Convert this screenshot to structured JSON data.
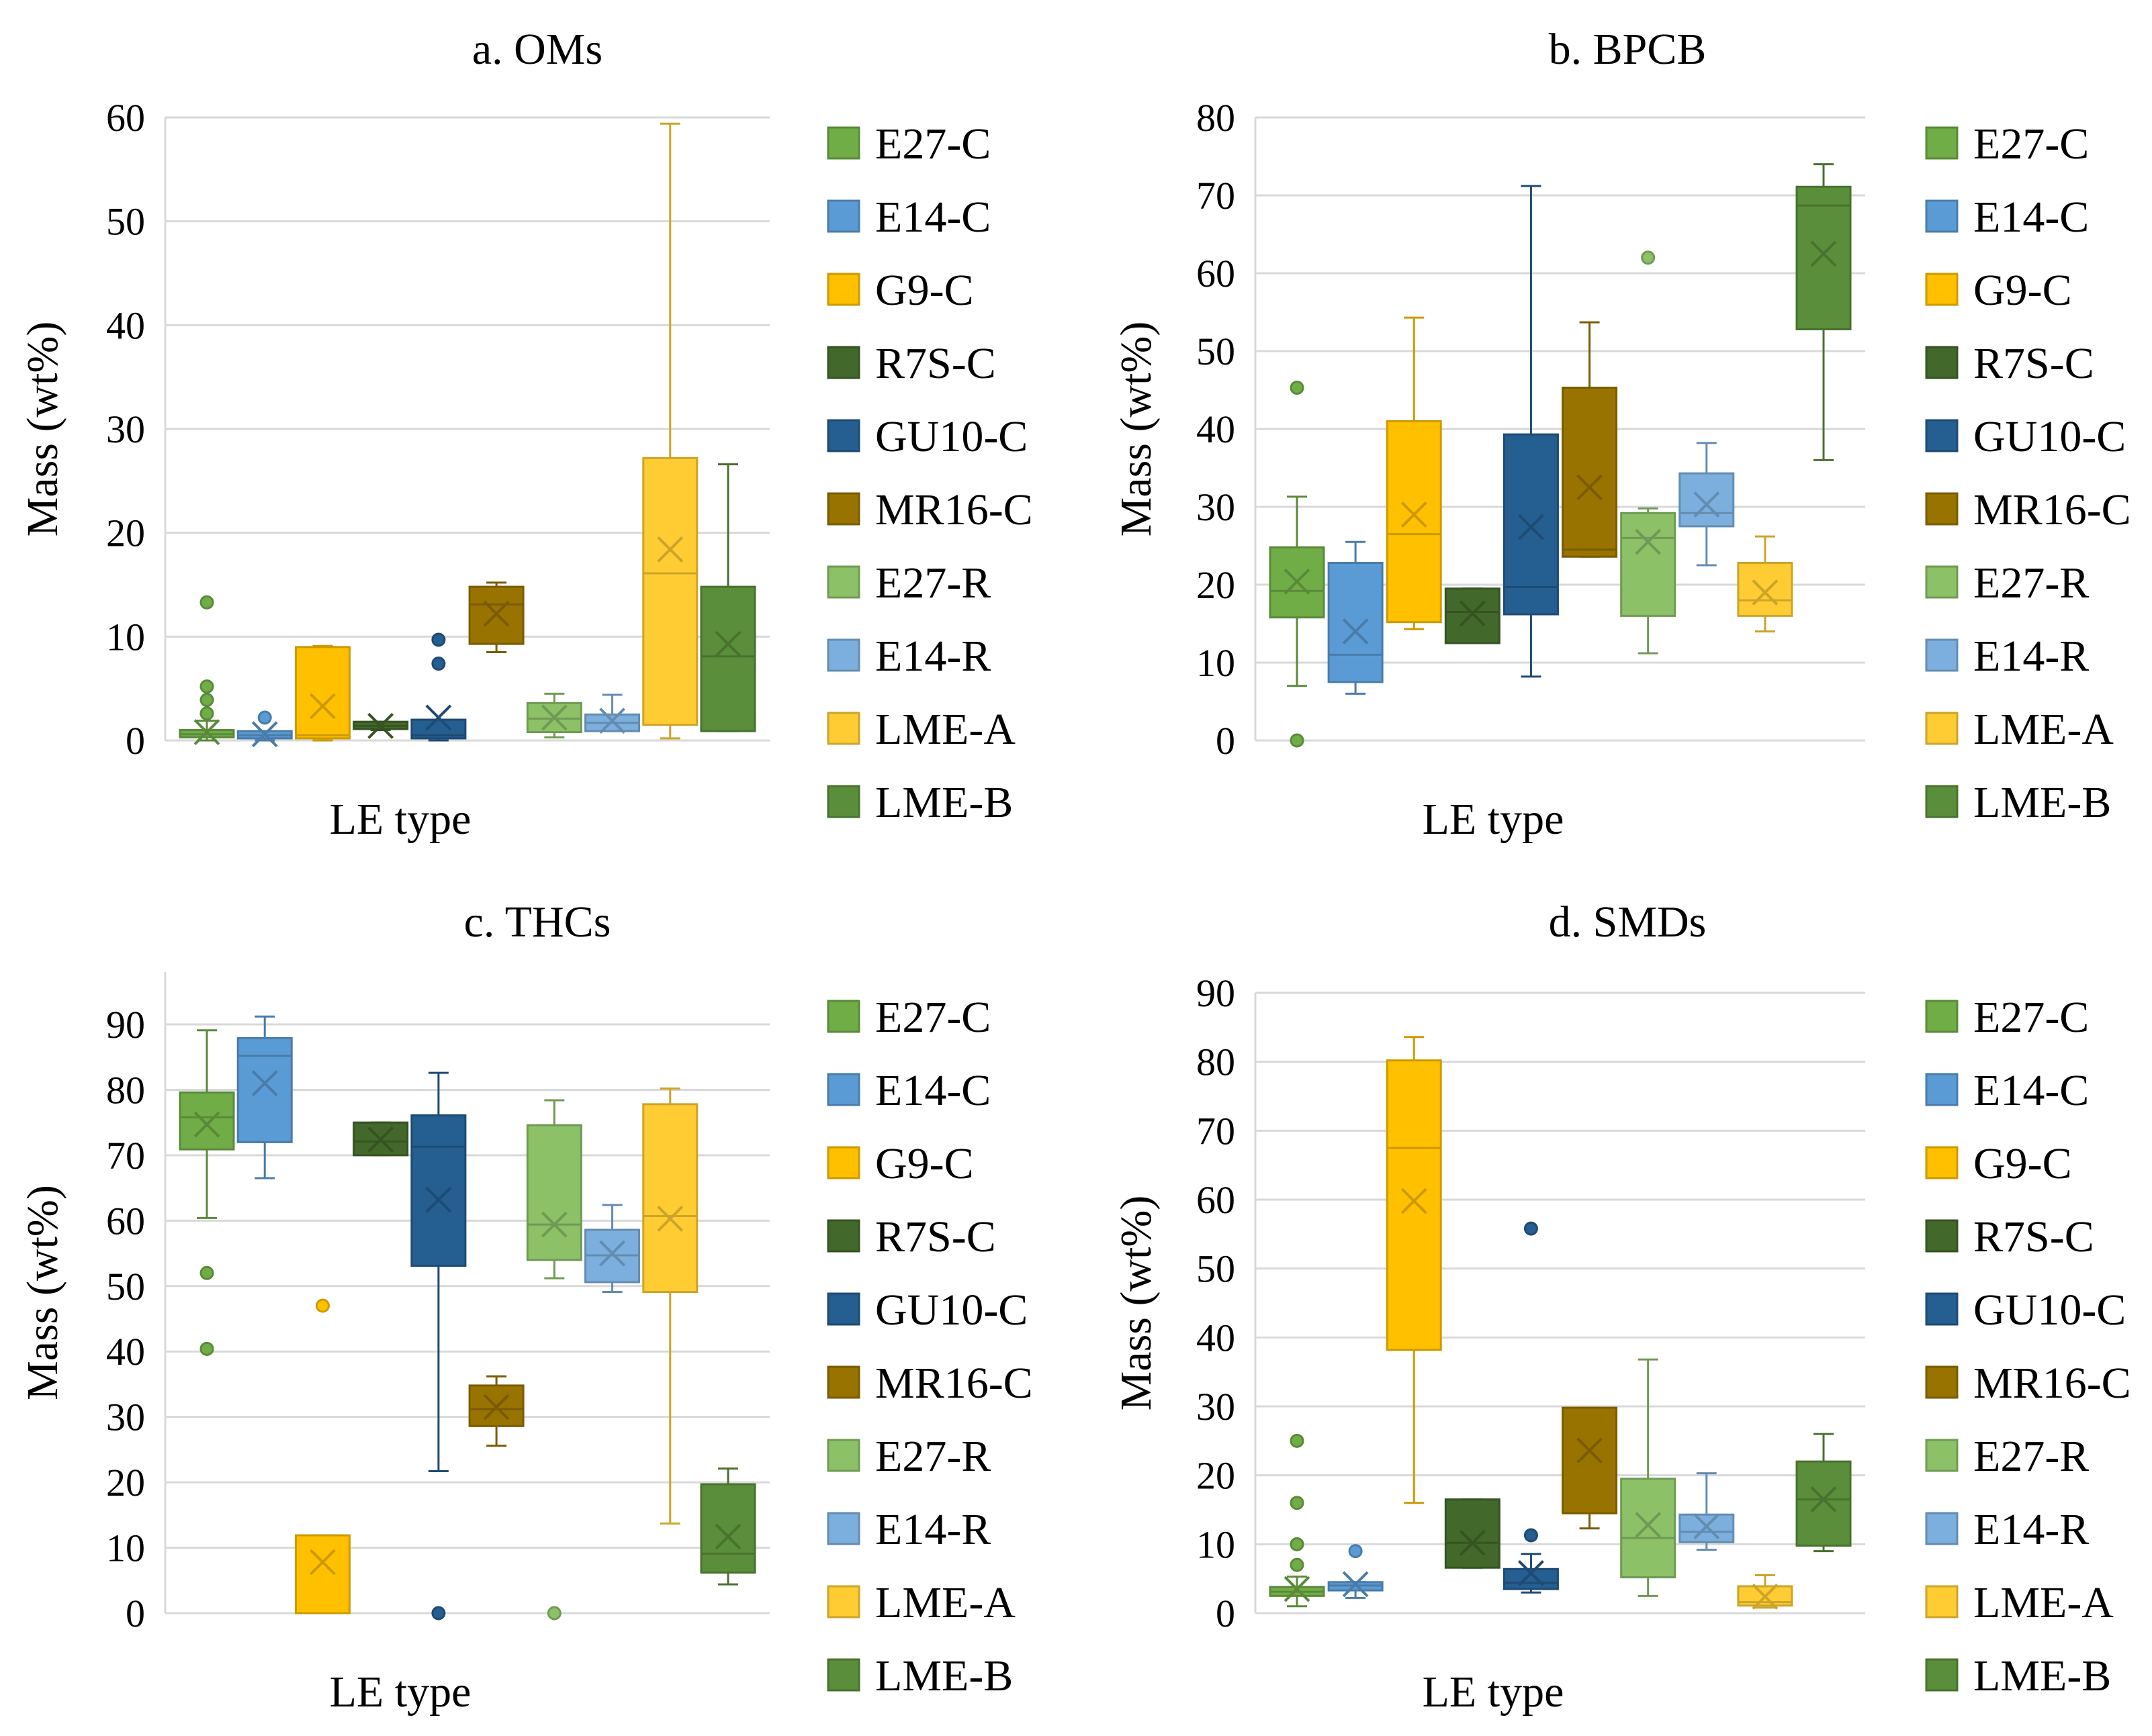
{
  "colors": {
    "E27-C": "#70AD47",
    "E14-C": "#5B9BD5",
    "G9-C": "#FFC000",
    "R7S-C": "#43682B",
    "GU10-C": "#255E91",
    "MR16-C": "#997300",
    "E27-R": "#8CC168",
    "E14-R": "#7CAFDD",
    "LME-A": "#FFCD33",
    "LME-B": "#5B8E3A"
  },
  "chart_data": [
    {
      "type": "box",
      "title": "a. OMs",
      "xlabel": "LE type",
      "ylabel": "Mass (wt%)",
      "ylim": [
        0,
        60
      ],
      "yticks": [
        0,
        10,
        20,
        30,
        40,
        50,
        60
      ],
      "grid": true,
      "legend": "right",
      "series": [
        {
          "name": "E27-C",
          "min": 0,
          "q1": 0.3,
          "median": 0.6,
          "q3": 1.0,
          "max": 1.9,
          "mean": 0.8,
          "outliers": [
            2.6,
            3.9,
            5.2,
            13.3
          ]
        },
        {
          "name": "E14-C",
          "min": 0,
          "q1": 0.2,
          "median": 0.5,
          "q3": 0.9,
          "max": 0.9,
          "mean": 0.6,
          "outliers": [
            2.2
          ]
        },
        {
          "name": "G9-C",
          "min": 0,
          "q1": 0.2,
          "median": 0.5,
          "q3": 9.0,
          "max": 9.1,
          "mean": 3.3,
          "outliers": []
        },
        {
          "name": "R7S-C",
          "min": 1.0,
          "q1": 1.1,
          "median": 1.4,
          "q3": 1.8,
          "max": 1.8,
          "mean": 1.4,
          "outliers": []
        },
        {
          "name": "GU10-C",
          "min": 0,
          "q1": 0.2,
          "median": 0.5,
          "q3": 2.0,
          "max": 2.0,
          "mean": 2.2,
          "outliers": [
            7.4,
            9.7
          ]
        },
        {
          "name": "MR16-C",
          "min": 8.5,
          "q1": 9.3,
          "median": 13.1,
          "q3": 14.8,
          "max": 15.2,
          "mean": 12.2,
          "outliers": []
        },
        {
          "name": "E27-R",
          "min": 0.3,
          "q1": 0.8,
          "median": 2.1,
          "q3": 3.6,
          "max": 4.5,
          "mean": 2.2,
          "outliers": []
        },
        {
          "name": "E14-R",
          "min": 0.9,
          "q1": 0.9,
          "median": 1.7,
          "q3": 2.5,
          "max": 4.4,
          "mean": 1.9,
          "outliers": []
        },
        {
          "name": "LME-A",
          "min": 0.2,
          "q1": 1.5,
          "median": 16.1,
          "q3": 27.2,
          "max": 59.4,
          "mean": 18.4,
          "outliers": []
        },
        {
          "name": "LME-B",
          "min": 0.9,
          "q1": 0.9,
          "median": 8.1,
          "q3": 14.8,
          "max": 26.6,
          "mean": 9.3,
          "outliers": []
        }
      ]
    },
    {
      "type": "box",
      "title": "b. BPCB",
      "xlabel": "LE type",
      "ylabel": "Mass (wt%)",
      "ylim": [
        0,
        80
      ],
      "yticks": [
        0,
        10,
        20,
        30,
        40,
        50,
        60,
        70,
        80
      ],
      "grid": true,
      "legend": "right",
      "series": [
        {
          "name": "E27-C",
          "min": 7,
          "q1": 15.8,
          "median": 19.2,
          "q3": 24.8,
          "max": 31.3,
          "mean": 20.4,
          "outliers": [
            0,
            45.3
          ]
        },
        {
          "name": "E14-C",
          "min": 6,
          "q1": 7.5,
          "median": 11,
          "q3": 22.8,
          "max": 25.5,
          "mean": 14,
          "outliers": []
        },
        {
          "name": "G9-C",
          "min": 14.3,
          "q1": 15.2,
          "median": 26.5,
          "q3": 41,
          "max": 54.3,
          "mean": 29,
          "outliers": []
        },
        {
          "name": "R7S-C",
          "min": 12.5,
          "q1": 12.5,
          "median": 16.5,
          "q3": 19.5,
          "max": 19.5,
          "mean": 16.3,
          "outliers": []
        },
        {
          "name": "GU10-C",
          "min": 8.2,
          "q1": 16.2,
          "median": 19.7,
          "q3": 39.3,
          "max": 71.2,
          "mean": 27.4,
          "outliers": []
        },
        {
          "name": "MR16-C",
          "min": 23.6,
          "q1": 23.6,
          "median": 24.5,
          "q3": 45.3,
          "max": 53.7,
          "mean": 32.5,
          "outliers": []
        },
        {
          "name": "E27-R",
          "min": 11.2,
          "q1": 16,
          "median": 26,
          "q3": 29.2,
          "max": 29.8,
          "mean": 25.5,
          "outliers": [
            62
          ]
        },
        {
          "name": "E14-R",
          "min": 22.5,
          "q1": 27.5,
          "median": 29.2,
          "q3": 34.3,
          "max": 38.2,
          "mean": 30.3,
          "outliers": []
        },
        {
          "name": "LME-A",
          "min": 14,
          "q1": 16,
          "median": 18,
          "q3": 22.8,
          "max": 26.2,
          "mean": 19,
          "outliers": []
        },
        {
          "name": "LME-B",
          "min": 36,
          "q1": 52.8,
          "median": 68.7,
          "q3": 71.1,
          "max": 74,
          "mean": 62.5,
          "outliers": []
        }
      ]
    },
    {
      "type": "box",
      "title": "c. THCs",
      "xlabel": "LE type",
      "ylabel": "Mass (wt%)",
      "ylim": [
        0,
        100
      ],
      "yticks": [
        0,
        10,
        20,
        30,
        40,
        50,
        60,
        70,
        80,
        90
      ],
      "grid": true,
      "legend": "right",
      "series": [
        {
          "name": "E27-C",
          "min": 60.4,
          "q1": 70.9,
          "median": 75.8,
          "q3": 79.6,
          "max": 89.1,
          "mean": 74.7,
          "outliers": [
            40.4,
            52
          ]
        },
        {
          "name": "E14-C",
          "min": 66.5,
          "q1": 72,
          "median": 85.2,
          "q3": 87.9,
          "max": 91.2,
          "mean": 81,
          "outliers": []
        },
        {
          "name": "G9-C",
          "min": 0,
          "q1": 0,
          "median": 0,
          "q3": 11.9,
          "max": 11.9,
          "mean": 7.8,
          "outliers": [
            47
          ]
        },
        {
          "name": "R7S-C",
          "min": 70,
          "q1": 70,
          "median": 72.1,
          "q3": 75,
          "max": 75,
          "mean": 72.4,
          "outliers": []
        },
        {
          "name": "GU10-C",
          "min": 21.7,
          "q1": 53.1,
          "median": 71.3,
          "q3": 76.1,
          "max": 82.6,
          "mean": 63.2,
          "outliers": [
            0
          ]
        },
        {
          "name": "MR16-C",
          "min": 25.6,
          "q1": 28.6,
          "median": 31.2,
          "q3": 34.8,
          "max": 36.2,
          "mean": 31.5,
          "outliers": []
        },
        {
          "name": "E27-R",
          "min": 51.2,
          "q1": 54,
          "median": 59.4,
          "q3": 74.6,
          "max": 78.4,
          "mean": 59.4,
          "outliers": [
            0
          ]
        },
        {
          "name": "E14-R",
          "min": 49.1,
          "q1": 50.6,
          "median": 54.7,
          "q3": 58.6,
          "max": 62.4,
          "mean": 55,
          "outliers": []
        },
        {
          "name": "LME-A",
          "min": 13.7,
          "q1": 49.1,
          "median": 60.7,
          "q3": 77.8,
          "max": 80.2,
          "mean": 60.3,
          "outliers": []
        },
        {
          "name": "LME-B",
          "min": 4.4,
          "q1": 6.2,
          "median": 9.1,
          "q3": 19.7,
          "max": 22.1,
          "mean": 11.7,
          "outliers": []
        }
      ]
    },
    {
      "type": "box",
      "title": "d. SMDs",
      "xlabel": "LE type",
      "ylabel": "Mass (wt%)",
      "ylim": [
        0,
        90
      ],
      "yticks": [
        0,
        10,
        20,
        30,
        40,
        50,
        60,
        70,
        80,
        90
      ],
      "grid": true,
      "legend": "right",
      "series": [
        {
          "name": "E27-C",
          "min": 1,
          "q1": 2.5,
          "median": 3.1,
          "q3": 3.8,
          "max": 5.3,
          "mean": 3.5,
          "outliers": [
            7,
            10,
            16,
            25
          ]
        },
        {
          "name": "E14-C",
          "min": 2.2,
          "q1": 3.3,
          "median": 4,
          "q3": 4.5,
          "max": 4.5,
          "mean": 4.2,
          "outliers": [
            9
          ]
        },
        {
          "name": "G9-C",
          "min": 16,
          "q1": 38.2,
          "median": 67.5,
          "q3": 80.2,
          "max": 83.6,
          "mean": 59.8,
          "outliers": []
        },
        {
          "name": "R7S-C",
          "min": 6.6,
          "q1": 6.6,
          "median": 10.2,
          "q3": 16.5,
          "max": 16.5,
          "mean": 10.2,
          "outliers": []
        },
        {
          "name": "GU10-C",
          "min": 3,
          "q1": 3.5,
          "median": 4.4,
          "q3": 6.4,
          "max": 8.6,
          "mean": 5.8,
          "outliers": [
            11.3,
            55.8
          ]
        },
        {
          "name": "MR16-C",
          "min": 12.3,
          "q1": 14.5,
          "median": 14.5,
          "q3": 29.8,
          "max": 29.8,
          "mean": 23.6,
          "outliers": []
        },
        {
          "name": "E27-R",
          "min": 2.5,
          "q1": 5.2,
          "median": 10.9,
          "q3": 19.5,
          "max": 36.8,
          "mean": 12.8,
          "outliers": []
        },
        {
          "name": "E14-R",
          "min": 9.2,
          "q1": 10.3,
          "median": 11.8,
          "q3": 14.3,
          "max": 20.3,
          "mean": 12.6,
          "outliers": []
        },
        {
          "name": "LME-A",
          "min": 0.8,
          "q1": 1.1,
          "median": 1.6,
          "q3": 3.9,
          "max": 5.5,
          "mean": 2.4,
          "outliers": []
        },
        {
          "name": "LME-B",
          "min": 9,
          "q1": 9.8,
          "median": 16.5,
          "q3": 22,
          "max": 26,
          "mean": 16.5,
          "outliers": []
        }
      ]
    }
  ]
}
